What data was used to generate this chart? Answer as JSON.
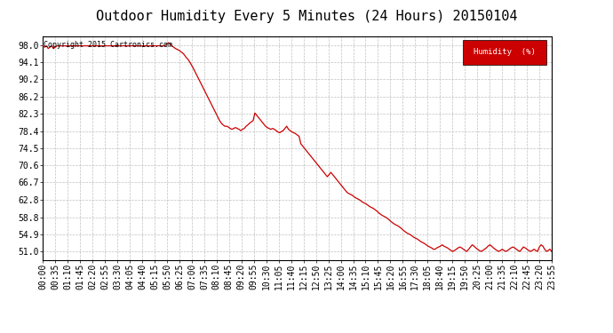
{
  "title": "Outdoor Humidity Every 5 Minutes (24 Hours) 20150104",
  "copyright_text": "Copyright 2015 Cartronics.com",
  "legend_label": "Humidity  (%)",
  "legend_bg": "#cc0000",
  "legend_text_color": "#ffffff",
  "line_color": "#cc0000",
  "bg_color": "#ffffff",
  "grid_color": "#b0b0b0",
  "yticks": [
    51.0,
    54.9,
    58.8,
    62.8,
    66.7,
    70.6,
    74.5,
    78.4,
    82.3,
    86.2,
    90.2,
    94.1,
    98.0
  ],
  "ymin": 49.1,
  "ymax": 99.9,
  "title_fontsize": 11,
  "tick_fontsize": 7,
  "humidity_data": [
    97.8,
    97.5,
    97.8,
    97.2,
    97.5,
    97.8,
    97.2,
    97.5,
    97.8,
    97.8,
    97.8,
    97.8,
    97.8,
    97.8,
    97.8,
    97.8,
    97.8,
    97.8,
    97.8,
    97.8,
    97.8,
    97.8,
    97.8,
    97.8,
    97.8,
    97.8,
    97.8,
    97.8,
    97.8,
    97.8,
    97.8,
    97.8,
    97.8,
    97.8,
    97.8,
    97.8,
    97.8,
    97.8,
    97.8,
    97.8,
    97.8,
    97.8,
    97.8,
    97.8,
    97.8,
    97.8,
    97.8,
    97.8,
    97.8,
    97.8,
    97.8,
    97.8,
    97.8,
    97.8,
    97.8,
    97.8,
    97.8,
    97.8,
    97.8,
    97.8,
    97.8,
    97.8,
    97.8,
    97.8,
    97.8,
    97.8,
    97.8,
    97.8,
    97.8,
    97.8,
    98.2,
    98.5,
    98.3,
    97.8,
    97.5,
    97.2,
    97.0,
    96.8,
    96.5,
    96.2,
    95.8,
    95.2,
    94.8,
    94.2,
    93.5,
    92.8,
    92.0,
    91.2,
    90.4,
    89.6,
    88.8,
    88.0,
    87.2,
    86.4,
    85.6,
    84.8,
    84.0,
    83.2,
    82.4,
    81.6,
    80.8,
    80.2,
    79.8,
    79.5,
    79.5,
    79.3,
    79.0,
    78.8,
    79.0,
    79.2,
    79.0,
    78.8,
    78.5,
    78.8,
    79.0,
    79.5,
    79.8,
    80.2,
    80.5,
    80.8,
    82.5,
    82.0,
    81.5,
    81.0,
    80.5,
    80.0,
    79.5,
    79.2,
    79.0,
    78.8,
    79.0,
    78.8,
    78.5,
    78.2,
    78.0,
    78.3,
    78.5,
    79.0,
    79.5,
    78.8,
    78.5,
    78.2,
    78.0,
    77.8,
    77.5,
    77.2,
    75.5,
    75.0,
    74.5,
    74.0,
    73.5,
    73.0,
    72.5,
    72.0,
    71.5,
    71.0,
    70.5,
    70.0,
    69.5,
    69.0,
    68.5,
    68.0,
    68.5,
    69.0,
    68.5,
    68.0,
    67.5,
    67.0,
    66.5,
    66.0,
    65.5,
    65.0,
    64.5,
    64.2,
    64.0,
    63.8,
    63.5,
    63.2,
    63.0,
    62.8,
    62.5,
    62.2,
    62.0,
    61.8,
    61.5,
    61.2,
    61.0,
    60.8,
    60.5,
    60.2,
    59.8,
    59.5,
    59.2,
    59.0,
    58.8,
    58.5,
    58.2,
    57.8,
    57.5,
    57.2,
    57.0,
    56.8,
    56.5,
    56.2,
    55.8,
    55.5,
    55.2,
    55.0,
    54.8,
    54.5,
    54.2,
    54.0,
    53.8,
    53.5,
    53.2,
    53.0,
    52.8,
    52.5,
    52.2,
    52.0,
    51.8,
    51.5,
    51.5,
    51.8,
    52.0,
    52.2,
    52.5,
    52.2,
    52.0,
    51.8,
    51.5,
    51.2,
    51.0,
    51.2,
    51.5,
    51.8,
    52.0,
    51.8,
    51.5,
    51.2,
    51.0,
    51.5,
    52.0,
    52.5,
    52.2,
    51.8,
    51.5,
    51.2,
    51.0,
    51.2,
    51.5,
    51.8,
    52.2,
    52.5,
    52.2,
    51.8,
    51.5,
    51.2,
    51.0,
    51.2,
    51.5,
    51.2,
    51.0,
    51.2,
    51.5,
    51.8,
    52.0,
    51.8,
    51.5,
    51.2,
    51.0,
    51.5,
    52.0,
    51.8,
    51.5,
    51.2,
    51.0,
    51.2,
    51.5,
    51.2,
    51.0,
    52.0,
    52.5,
    52.2,
    51.5,
    51.0,
    51.2,
    51.5,
    51.0
  ],
  "xtick_labels": [
    "00:00",
    "00:35",
    "01:10",
    "01:45",
    "02:20",
    "02:55",
    "03:30",
    "04:05",
    "04:40",
    "05:15",
    "05:50",
    "06:25",
    "07:00",
    "07:35",
    "08:10",
    "08:45",
    "09:20",
    "09:55",
    "10:30",
    "11:05",
    "11:40",
    "12:15",
    "12:50",
    "13:25",
    "14:00",
    "14:35",
    "15:10",
    "15:45",
    "16:20",
    "16:55",
    "17:30",
    "18:05",
    "18:40",
    "19:15",
    "19:50",
    "20:25",
    "21:00",
    "21:35",
    "22:10",
    "22:45",
    "23:20",
    "23:55"
  ]
}
